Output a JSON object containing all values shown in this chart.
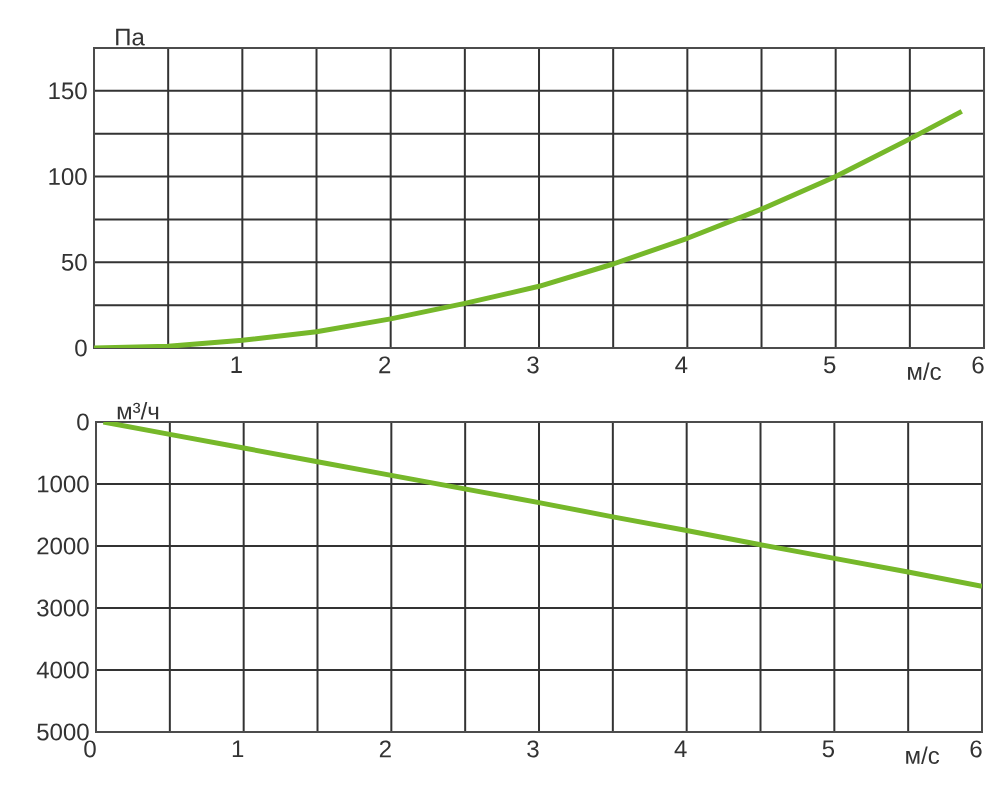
{
  "chart_data": [
    {
      "type": "line",
      "ylabel": "Па",
      "xlabel": "м/с",
      "xlim": [
        0,
        6
      ],
      "ylim": [
        0,
        175
      ],
      "grid": true,
      "xticks": [
        {
          "value": 0,
          "label": null
        },
        {
          "value": 0.5,
          "label": null
        },
        1,
        {
          "value": 1.5,
          "label": null
        },
        2,
        {
          "value": 2.5,
          "label": null
        },
        3,
        {
          "value": 3.5,
          "label": null
        },
        4,
        {
          "value": 4.5,
          "label": null
        },
        5,
        {
          "value": 5.5,
          "label": null
        },
        6
      ],
      "yticks": [
        0,
        {
          "value": 25,
          "label": null
        },
        50,
        {
          "value": 75,
          "label": null
        },
        100,
        {
          "value": 125,
          "label": null
        },
        150,
        {
          "value": 175,
          "label": null
        }
      ],
      "series": [
        {
          "color": "#76b82a",
          "x": [
            0,
            0.5,
            1,
            1.5,
            2,
            2.5,
            3,
            3.5,
            4,
            4.5,
            5,
            5.5,
            5.85
          ],
          "values": [
            0,
            1,
            4.5,
            9.5,
            17,
            26,
            36,
            49,
            64,
            81,
            100,
            122,
            138
          ]
        }
      ]
    },
    {
      "type": "line",
      "ylabel": "м³/ч",
      "xlabel": "м/с",
      "xlim": [
        0,
        6
      ],
      "ylim": [
        5000,
        0
      ],
      "grid": true,
      "xticks": [
        0,
        {
          "value": 0.5,
          "label": null
        },
        1,
        {
          "value": 1.5,
          "label": null
        },
        2,
        {
          "value": 2.5,
          "label": null
        },
        3,
        {
          "value": 3.5,
          "label": null
        },
        4,
        {
          "value": 4.5,
          "label": null
        },
        5,
        {
          "value": 5.5,
          "label": null
        },
        6
      ],
      "yticks": [
        0,
        1000,
        2000,
        3000,
        4000,
        5000
      ],
      "series": [
        {
          "color": "#76b82a",
          "x": [
            0.05,
            0.5,
            1,
            1.5,
            2,
            2.5,
            3,
            3.5,
            4,
            4.5,
            5,
            5.5,
            6
          ],
          "values": [
            0,
            200,
            420,
            640,
            860,
            1080,
            1300,
            1530,
            1750,
            1980,
            2200,
            2420,
            2650
          ]
        }
      ]
    }
  ]
}
